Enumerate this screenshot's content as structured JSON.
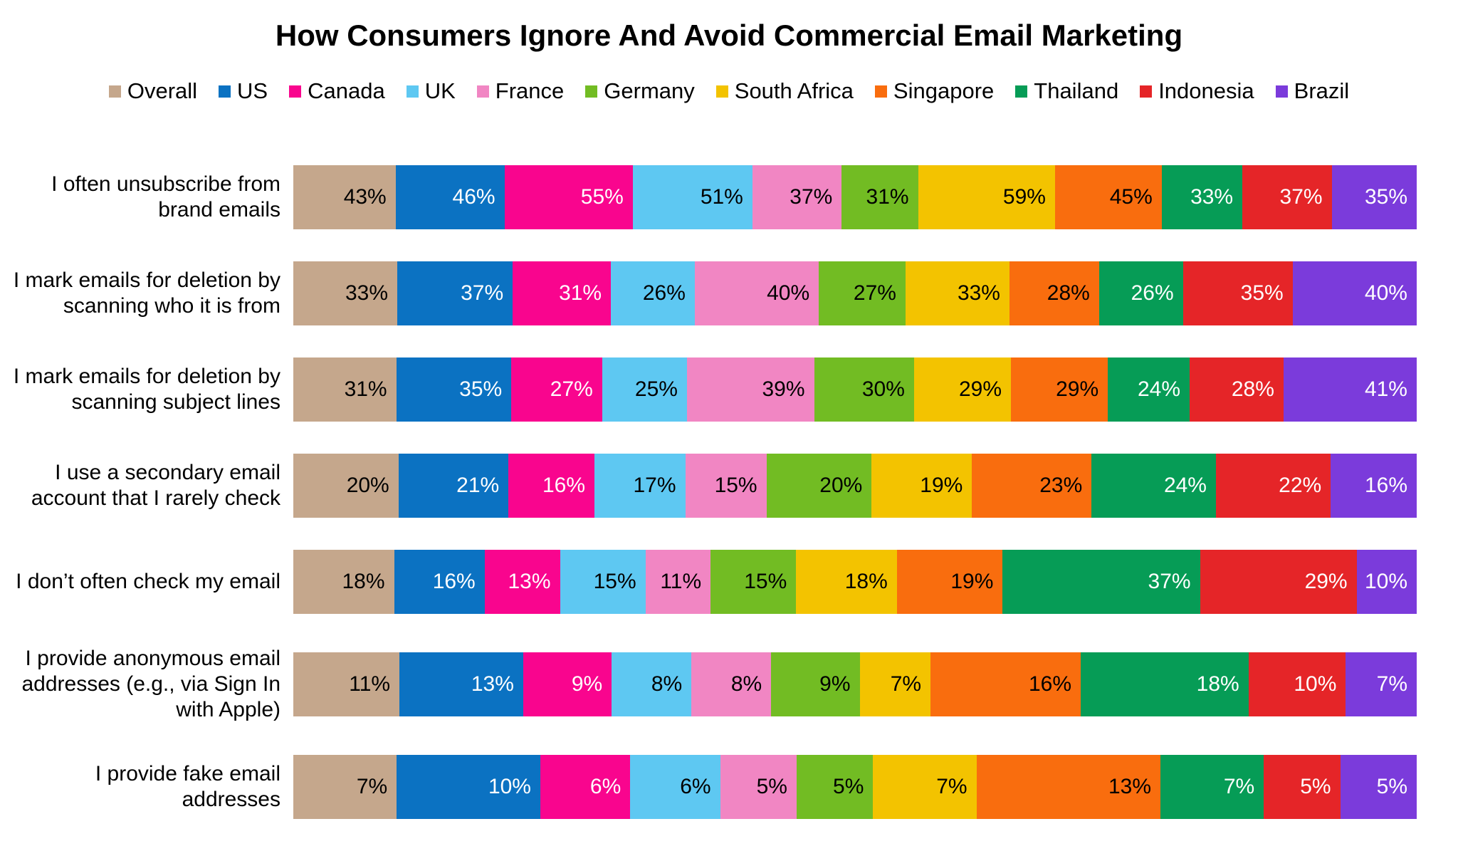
{
  "chart_data": {
    "type": "bar",
    "orientation": "horizontal",
    "stacked": true,
    "normalized_per_row": true,
    "grid": false,
    "legend_position": "top",
    "title": "How Consumers Ignore And Avoid Commercial Email Marketing",
    "value_suffix": "%",
    "series": [
      {
        "name": "Overall",
        "color": "#C5A78C",
        "label_color": "#000000"
      },
      {
        "name": "US",
        "color": "#0B72C2",
        "label_color": "#FFFFFF"
      },
      {
        "name": "Canada",
        "color": "#F9058E",
        "label_color": "#FFFFFF"
      },
      {
        "name": "UK",
        "color": "#5EC8F2",
        "label_color": "#000000"
      },
      {
        "name": "France",
        "color": "#F186C3",
        "label_color": "#000000"
      },
      {
        "name": "Germany",
        "color": "#72BC23",
        "label_color": "#000000"
      },
      {
        "name": "South Africa",
        "color": "#F3C300",
        "label_color": "#000000"
      },
      {
        "name": "Singapore",
        "color": "#F96D0E",
        "label_color": "#000000"
      },
      {
        "name": "Thailand",
        "color": "#069C56",
        "label_color": "#FFFFFF"
      },
      {
        "name": "Indonesia",
        "color": "#E52528",
        "label_color": "#FFFFFF"
      },
      {
        "name": "Brazil",
        "color": "#7B3BDB",
        "label_color": "#FFFFFF"
      }
    ],
    "categories": [
      "I often unsubscribe from brand emails",
      "I mark emails for deletion by scanning who it is from",
      "I mark emails for deletion by scanning subject lines",
      "I use a secondary email account that I rarely check",
      "I don’t often check my email",
      "I provide anonymous email addresses (e.g., via Sign In with Apple)",
      "I provide fake email addresses"
    ],
    "values": [
      [
        43,
        46,
        55,
        51,
        37,
        31,
        59,
        45,
        33,
        37,
        35
      ],
      [
        33,
        37,
        31,
        26,
        40,
        27,
        33,
        28,
        26,
        35,
        40
      ],
      [
        31,
        35,
        27,
        25,
        39,
        30,
        29,
        29,
        24,
        28,
        41
      ],
      [
        20,
        21,
        16,
        17,
        15,
        20,
        19,
        23,
        24,
        22,
        16
      ],
      [
        18,
        16,
        13,
        15,
        11,
        15,
        18,
        19,
        37,
        29,
        10
      ],
      [
        11,
        13,
        9,
        8,
        8,
        9,
        7,
        16,
        18,
        10,
        7
      ],
      [
        7,
        10,
        6,
        6,
        5,
        5,
        7,
        13,
        7,
        5,
        5
      ]
    ]
  }
}
